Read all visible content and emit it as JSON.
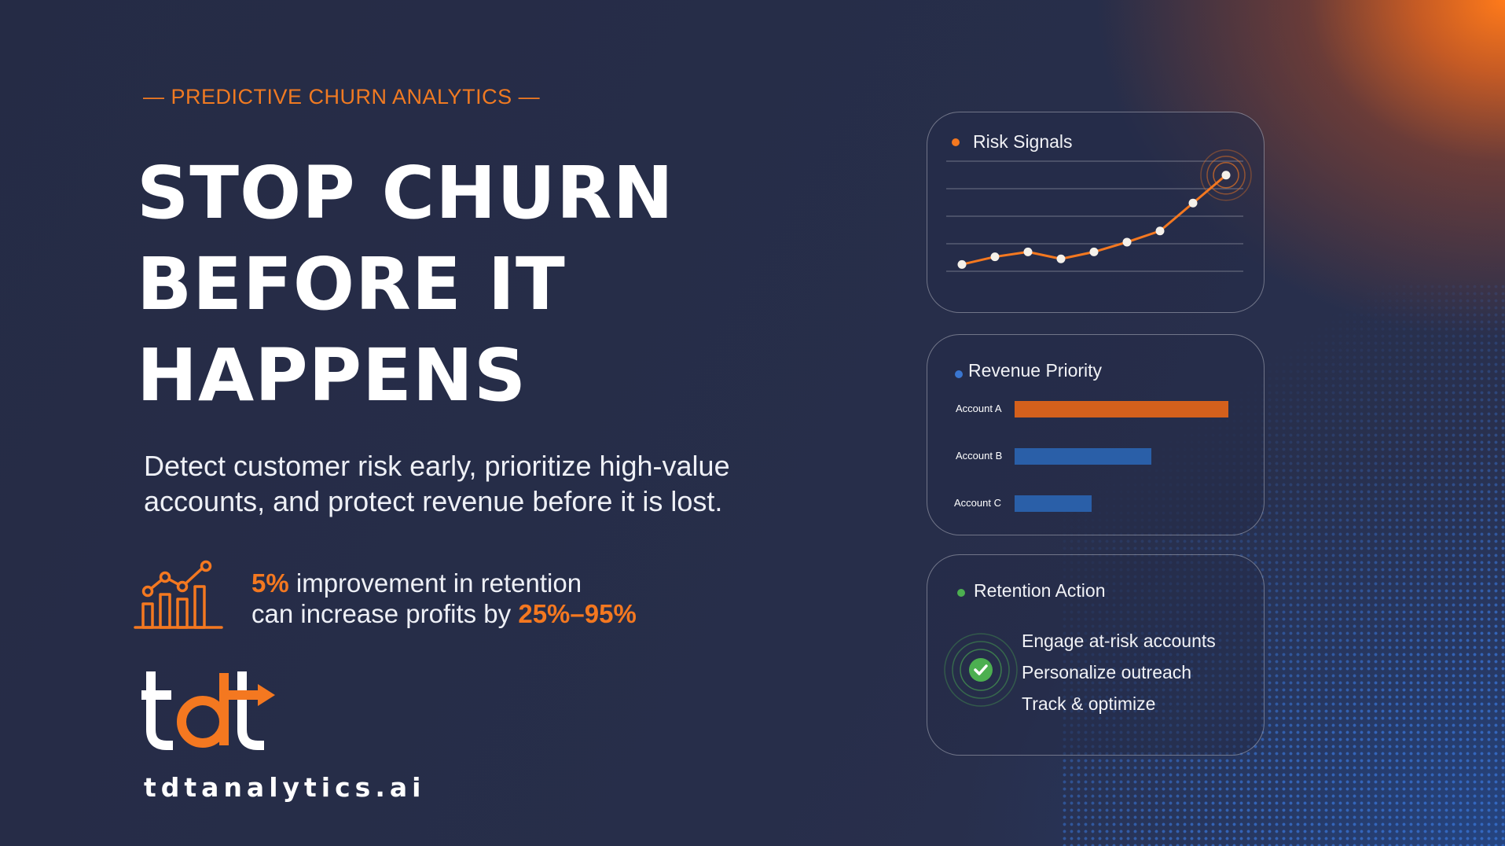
{
  "eyebrow": "— PREDICTIVE CHURN ANALYTICS —",
  "headline": {
    "line1": "STOP CHURN",
    "line2": "BEFORE IT",
    "line3": "HAPPENS"
  },
  "subtext": {
    "line1": "Detect customer risk early, prioritize high-value",
    "line2": "accounts, and protect revenue before it is lost."
  },
  "stat": {
    "icon": "bar-chart-trend-icon",
    "highlight1": "5%",
    "text1": " improvement in retention",
    "text2": "can increase profits by ",
    "highlight2": "25%–95%"
  },
  "brand": {
    "logo": "tdt-logo",
    "website": "tdtanalytics.ai"
  },
  "colors": {
    "accent_orange": "#f47820",
    "accent_blue": "#2a5fa8",
    "success_green": "#4caf50",
    "background": "#262d48"
  },
  "cards": {
    "risk": {
      "title": "Risk Signals",
      "chart_data": {
        "type": "line",
        "x": [
          1,
          2,
          3,
          4,
          5,
          6,
          7,
          8,
          9
        ],
        "values": [
          1.2,
          2.3,
          3.0,
          2.0,
          3.0,
          4.4,
          6.0,
          10.0,
          14.0
        ],
        "ylim": [
          0,
          16
        ],
        "grid": true,
        "color": "#f47820"
      }
    },
    "revenue": {
      "title": "Revenue Priority",
      "chart_data": {
        "type": "bar",
        "orientation": "horizontal",
        "categories": [
          "Account A",
          "Account B",
          "Account C"
        ],
        "values": [
          100,
          64,
          36
        ],
        "colors": [
          "#d4601c",
          "#2a5fa8",
          "#2a5fa8"
        ],
        "xlim": [
          0,
          100
        ]
      }
    },
    "retention": {
      "title": "Retention Action",
      "icon": "check-circle-icon",
      "items": [
        "Engage at-risk accounts",
        "Personalize outreach",
        "Track & optimize"
      ]
    }
  }
}
